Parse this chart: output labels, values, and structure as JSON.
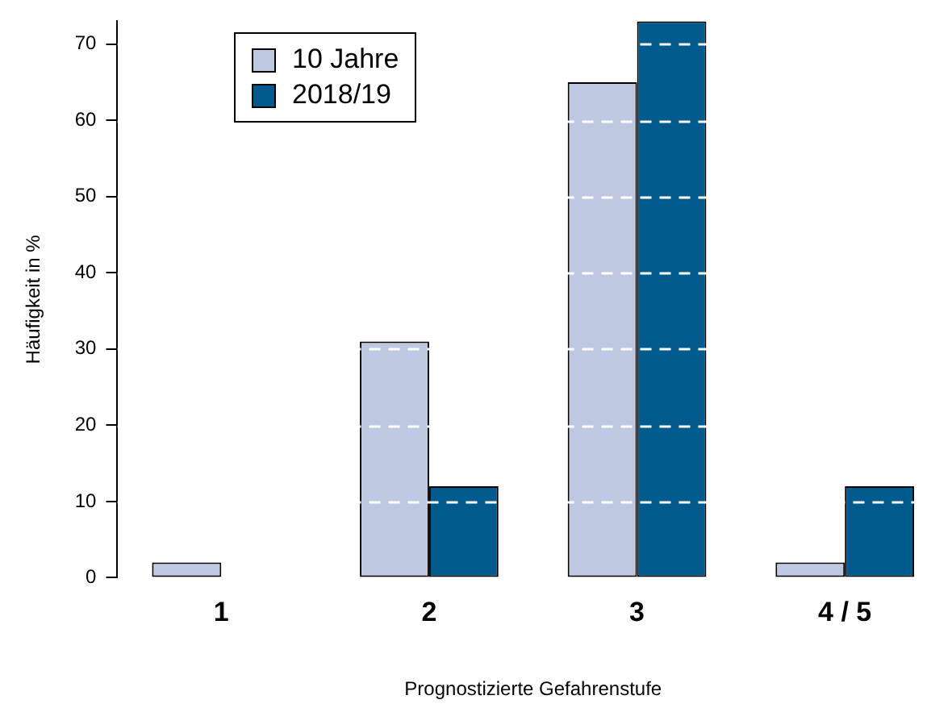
{
  "chart_data": {
    "type": "bar",
    "xlabel": "Prognostizierte Gefahrenstufe",
    "ylabel": "Häufigkeit in %",
    "categories": [
      "1",
      "2",
      "3",
      "4 / 5"
    ],
    "series": [
      {
        "name": "10 Jahre",
        "color": "#bec8e0",
        "values": [
          2,
          31,
          65,
          2
        ]
      },
      {
        "name": "2018/19",
        "color": "#005a8c",
        "values": [
          0,
          12,
          73,
          12
        ]
      }
    ],
    "ylim": [
      0,
      73
    ],
    "yticks": [
      0,
      10,
      20,
      30,
      40,
      50,
      60,
      70
    ],
    "grid": "y",
    "legend": "top left"
  }
}
